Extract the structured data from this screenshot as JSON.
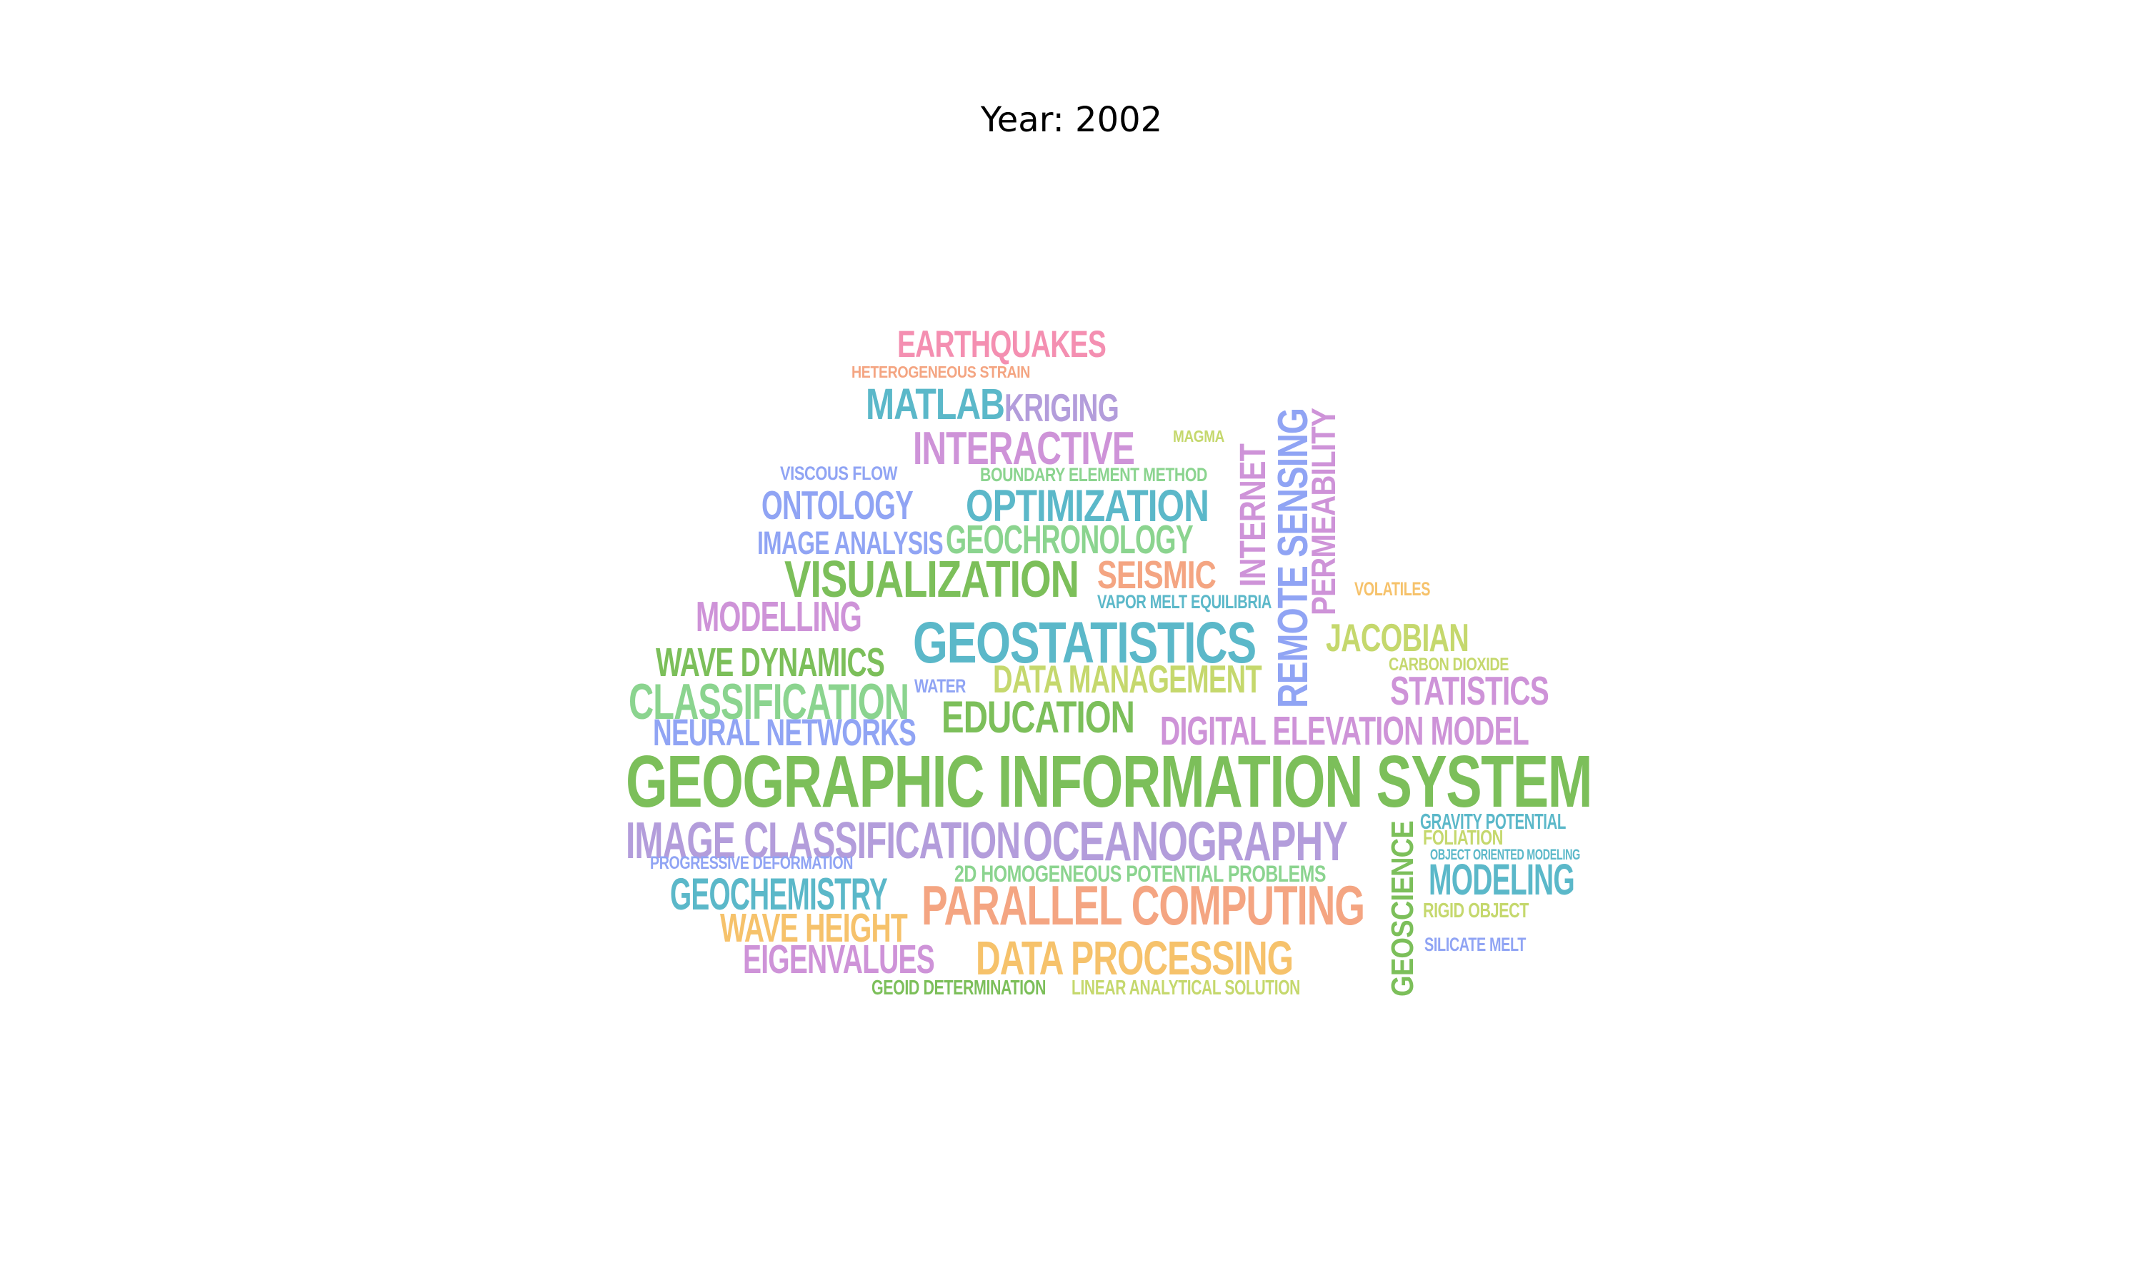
{
  "title": "Year: 2002",
  "words": [
    {
      "text": "EARTHQUAKES",
      "color": "#f48fb1",
      "weight": 5
    },
    {
      "text": "HETEROGENEOUS STRAIN",
      "color": "#f4a582",
      "weight": 1
    },
    {
      "text": "MATLAB",
      "color": "#5bb8c9",
      "weight": 6
    },
    {
      "text": "KRIGING",
      "color": "#b39ddb",
      "weight": 5
    },
    {
      "text": "INTERACTIVE",
      "color": "#ce93d8",
      "weight": 6
    },
    {
      "text": "MAGMA",
      "color": "#c5d86d",
      "weight": 1
    },
    {
      "text": "VISCOUS FLOW",
      "color": "#90a4f4",
      "weight": 1
    },
    {
      "text": "BOUNDARY ELEMENT METHOD",
      "color": "#8bd48f",
      "weight": 2
    },
    {
      "text": "ONTOLOGY",
      "color": "#90a4f4",
      "weight": 5
    },
    {
      "text": "OPTIMIZATION",
      "color": "#5bb8c9",
      "weight": 7
    },
    {
      "text": "INTERNET",
      "color": "#ce93d8",
      "weight": 5,
      "vertical": true
    },
    {
      "text": "REMOTE SENSING",
      "color": "#90a4f4",
      "weight": 6,
      "vertical": true
    },
    {
      "text": "PERMEABILITY",
      "color": "#ce93d8",
      "weight": 5,
      "vertical": true
    },
    {
      "text": "IMAGE ANALYSIS",
      "color": "#90a4f4",
      "weight": 4
    },
    {
      "text": "GEOCHRONOLOGY",
      "color": "#8bd48f",
      "weight": 5
    },
    {
      "text": "VISUALIZATION",
      "color": "#7cbf5a",
      "weight": 7
    },
    {
      "text": "SEISMIC",
      "color": "#f4a582",
      "weight": 5
    },
    {
      "text": "VOLATILES",
      "color": "#f6c26b",
      "weight": 1
    },
    {
      "text": "VAPOR MELT EQUILIBRIA",
      "color": "#5bb8c9",
      "weight": 1
    },
    {
      "text": "MODELLING",
      "color": "#ce93d8",
      "weight": 5
    },
    {
      "text": "GEOSTATISTICS",
      "color": "#5bb8c9",
      "weight": 8
    },
    {
      "text": "JACOBIAN",
      "color": "#c5d86d",
      "weight": 5
    },
    {
      "text": "WAVE DYNAMICS",
      "color": "#7cbf5a",
      "weight": 5
    },
    {
      "text": "CARBON DIOXIDE",
      "color": "#c5d86d",
      "weight": 1
    },
    {
      "text": "WATER",
      "color": "#90a4f4",
      "weight": 1
    },
    {
      "text": "DATA MANAGEMENT",
      "color": "#c5d86d",
      "weight": 5
    },
    {
      "text": "STATISTICS",
      "color": "#ce93d8",
      "weight": 5
    },
    {
      "text": "CLASSIFICATION",
      "color": "#8bd48f",
      "weight": 6
    },
    {
      "text": "EDUCATION",
      "color": "#7cbf5a",
      "weight": 6
    },
    {
      "text": "NEURAL NETWORKS",
      "color": "#90a4f4",
      "weight": 5
    },
    {
      "text": "DIGITAL ELEVATION MODEL",
      "color": "#ce93d8",
      "weight": 5
    },
    {
      "text": "GEOGRAPHIC INFORMATION SYSTEM",
      "color": "#7cbf5a",
      "weight": 10
    },
    {
      "text": "IMAGE CLASSIFICATION",
      "color": "#b39ddb",
      "weight": 6
    },
    {
      "text": "OCEANOGRAPHY",
      "color": "#b39ddb",
      "weight": 7
    },
    {
      "text": "GRAVITY POTENTIAL",
      "color": "#5bb8c9",
      "weight": 2
    },
    {
      "text": "FOLIATION",
      "color": "#c5d86d",
      "weight": 2
    },
    {
      "text": "GEOSCIENCE",
      "color": "#7cbf5a",
      "weight": 5,
      "vertical": true
    },
    {
      "text": "OBJECT ORIENTED MODELING",
      "color": "#5bb8c9",
      "weight": 1
    },
    {
      "text": "PROGRESSIVE DEFORMATION",
      "color": "#90a4f4",
      "weight": 1
    },
    {
      "text": "2D HOMOGENEOUS POTENTIAL PROBLEMS",
      "color": "#8bd48f",
      "weight": 3
    },
    {
      "text": "MODELING",
      "color": "#5bb8c9",
      "weight": 5
    },
    {
      "text": "GEOCHEMISTRY",
      "color": "#5bb8c9",
      "weight": 5
    },
    {
      "text": "PARALLEL COMPUTING",
      "color": "#f4a582",
      "weight": 7
    },
    {
      "text": "RIGID OBJECT",
      "color": "#c5d86d",
      "weight": 2
    },
    {
      "text": "WAVE HEIGHT",
      "color": "#f6c26b",
      "weight": 5
    },
    {
      "text": "SILICATE MELT",
      "color": "#90a4f4",
      "weight": 1
    },
    {
      "text": "EIGENVALUES",
      "color": "#ce93d8",
      "weight": 5
    },
    {
      "text": "DATA PROCESSING",
      "color": "#f6c26b",
      "weight": 6
    },
    {
      "text": "GEOID DETERMINATION",
      "color": "#7cbf5a",
      "weight": 2
    },
    {
      "text": "LINEAR ANALYTICAL SOLUTION",
      "color": "#c5d86d",
      "weight": 2
    }
  ]
}
